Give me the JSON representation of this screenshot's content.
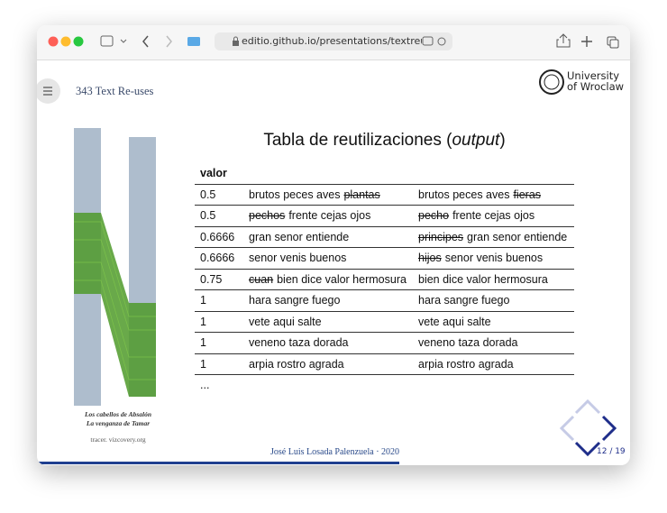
{
  "browser": {
    "url": "editio.github.io/presentations/textreuse.html"
  },
  "slide": {
    "header": {
      "reuse_count": "343 Text Re-uses",
      "university_line1": "University",
      "university_line2": "of Wroclaw"
    },
    "title": {
      "before": "Tabla de reutilizaciones (",
      "italic": "output",
      "after": ")"
    },
    "table": {
      "header": "valor",
      "rows": [
        {
          "value": "0.5",
          "a": [
            {
              "text": "brutos peces aves",
              "struck": false
            },
            {
              "text": "plantas",
              "struck": true
            }
          ],
          "b": [
            {
              "text": "brutos peces aves",
              "struck": false
            },
            {
              "text": "fieras",
              "struck": true
            }
          ]
        },
        {
          "value": "0.5",
          "a": [
            {
              "text": "pechos",
              "struck": true
            },
            {
              "text": "frente cejas ojos",
              "struck": false
            }
          ],
          "b": [
            {
              "text": "pecho",
              "struck": true
            },
            {
              "text": "frente cejas ojos",
              "struck": false
            }
          ]
        },
        {
          "value": "0.6666",
          "a": [
            {
              "text": "gran senor entiende",
              "struck": false
            }
          ],
          "b": [
            {
              "text": "principes",
              "struck": true
            },
            {
              "text": "gran senor entiende",
              "struck": false
            }
          ]
        },
        {
          "value": "0.6666",
          "a": [
            {
              "text": "senor venis buenos",
              "struck": false
            }
          ],
          "b": [
            {
              "text": "hijos",
              "struck": true
            },
            {
              "text": "senor venis buenos",
              "struck": false
            }
          ]
        },
        {
          "value": "0.75",
          "a": [
            {
              "text": "cuan",
              "struck": true
            },
            {
              "text": "bien dice valor hermosura",
              "struck": false
            }
          ],
          "b": [
            {
              "text": "bien dice valor hermosura",
              "struck": false
            }
          ]
        },
        {
          "value": "1",
          "a": [
            {
              "text": "hara sangre fuego",
              "struck": false
            }
          ],
          "b": [
            {
              "text": "hara sangre fuego",
              "struck": false
            }
          ]
        },
        {
          "value": "1",
          "a": [
            {
              "text": "vete aqui salte",
              "struck": false
            }
          ],
          "b": [
            {
              "text": "vete aqui salte",
              "struck": false
            }
          ]
        },
        {
          "value": "1",
          "a": [
            {
              "text": "veneno taza dorada",
              "struck": false
            }
          ],
          "b": [
            {
              "text": "veneno taza dorada",
              "struck": false
            }
          ]
        },
        {
          "value": "1",
          "a": [
            {
              "text": "arpia rostro agrada",
              "struck": false
            }
          ],
          "b": [
            {
              "text": "arpia rostro agrada",
              "struck": false
            }
          ]
        }
      ],
      "ellipsis": "..."
    },
    "figure": {
      "caption_line1": "Los cabellos de Absalón",
      "caption_line2": "La venganza de Tamar",
      "source": "tracer. vizcovery.org"
    },
    "footer": {
      "author": "José Luis Losada Palenzuela · 2020",
      "page": "12 / 19"
    }
  }
}
